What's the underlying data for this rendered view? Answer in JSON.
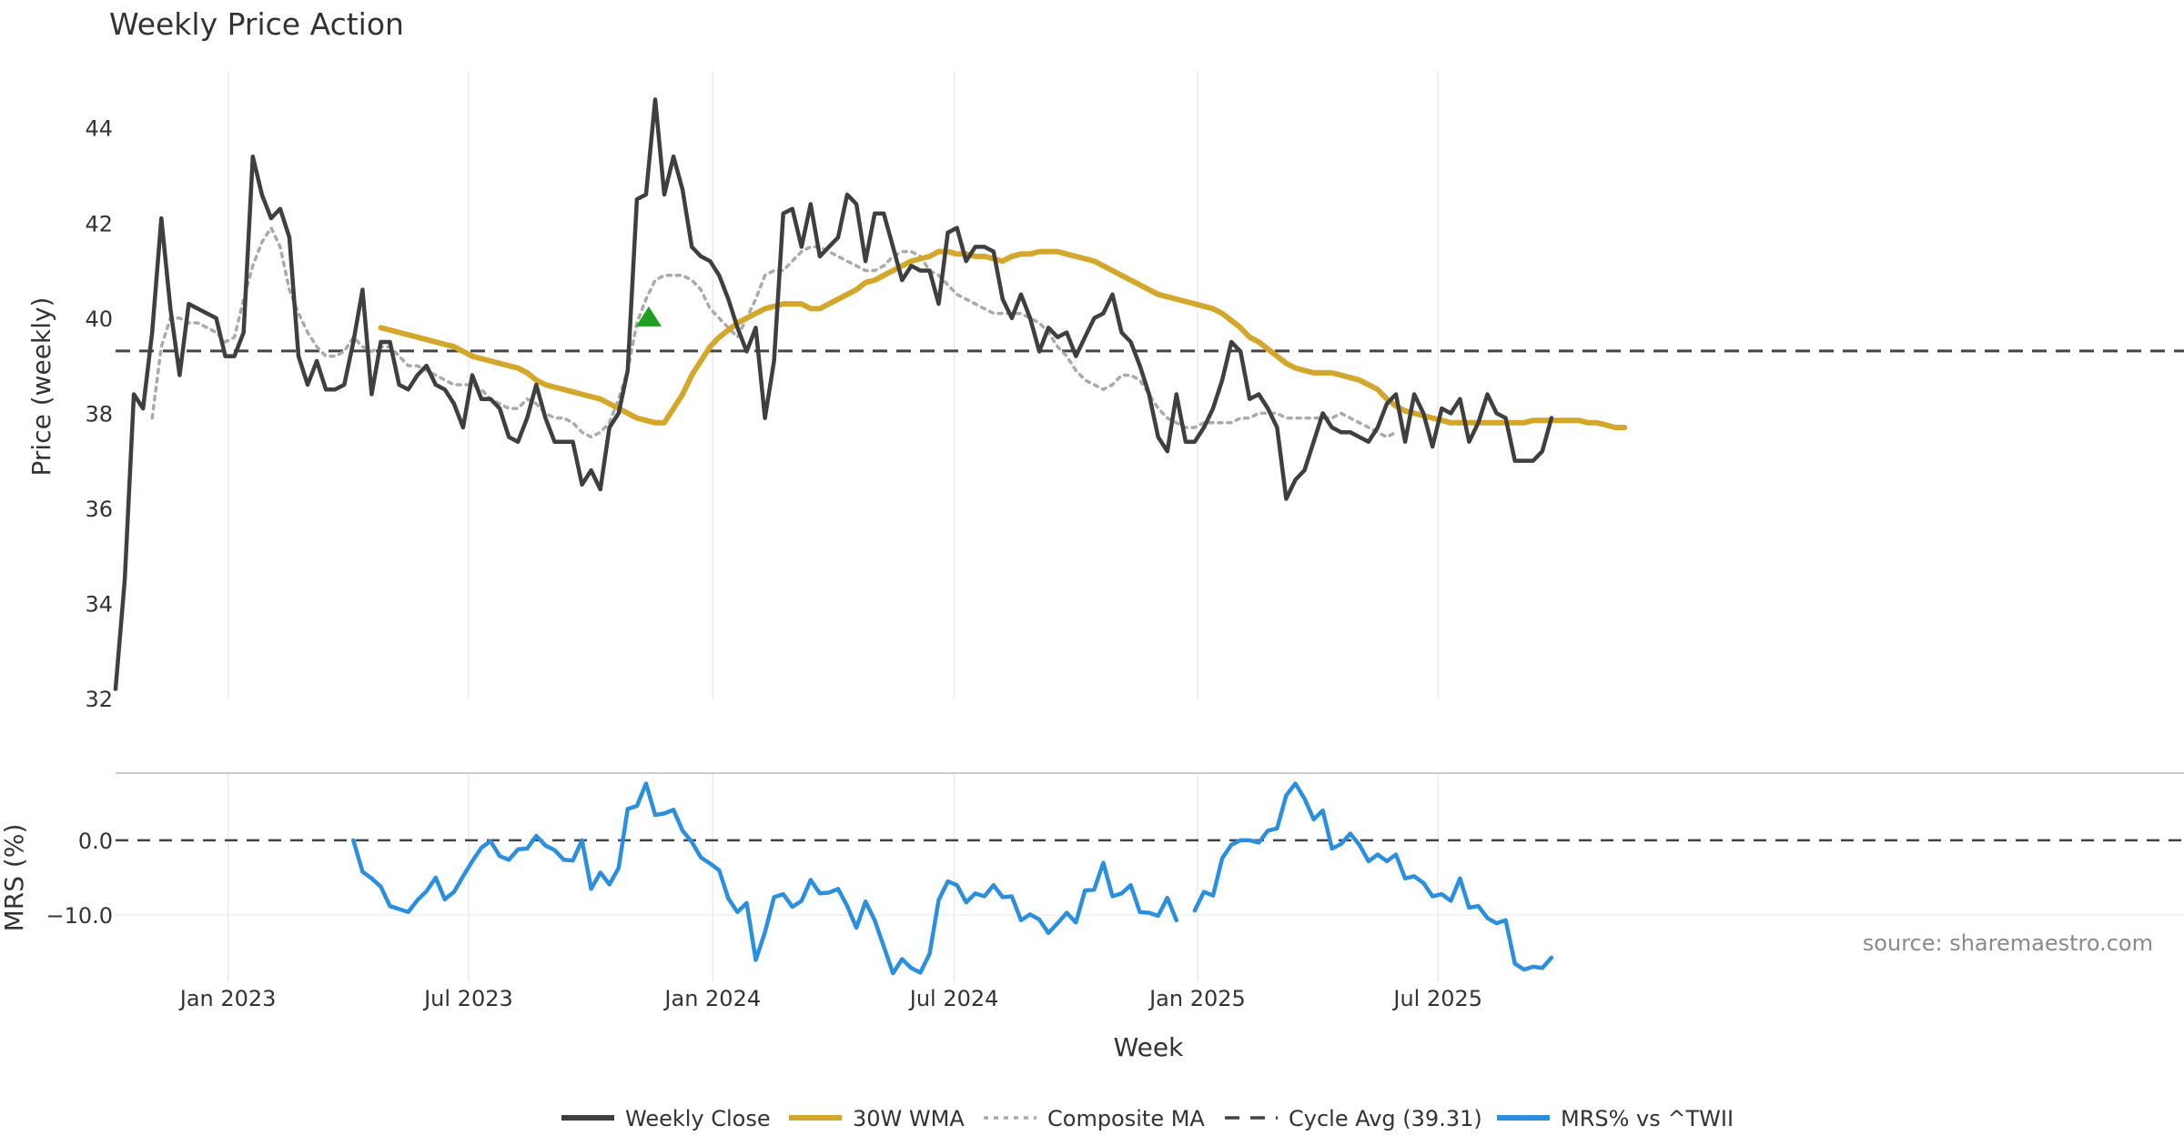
{
  "colors": {
    "close": "#3f3f3f",
    "wma": "#d4a62a",
    "composite": "#aaaaaa",
    "cycle": "#444444",
    "mrs": "#2b8fe0",
    "signal": "#1f9e1f",
    "grid": "#ebebeb"
  },
  "chart_data": [
    {
      "type": "line",
      "title": "Weekly Price Action",
      "xlabel": "Week",
      "ylabel": "Price (weekly)",
      "ylim": [
        32,
        45.2
      ],
      "yticks": [
        "32",
        "34",
        "36",
        "38",
        "40",
        "42",
        "44"
      ],
      "xticks": [
        "Jan 2023",
        "Jul 2023",
        "Jan 2024",
        "Jul 2024",
        "Jan 2025",
        "Jul 2025"
      ],
      "xtick_weeks": [
        12.3,
        38.6,
        65.3,
        91.7,
        118.3,
        144.6
      ],
      "cycle_avg": 39.31,
      "series": [
        {
          "name": "Weekly Close",
          "start_week": 0,
          "values": [
            32.2,
            34.5,
            38.4,
            38.1,
            39.7,
            42.1,
            40.2,
            38.8,
            40.3,
            40.2,
            40.1,
            40.0,
            39.2,
            39.2,
            39.7,
            43.4,
            42.6,
            42.1,
            42.3,
            41.7,
            39.2,
            38.6,
            39.1,
            38.5,
            38.5,
            38.6,
            39.5,
            40.6,
            38.4,
            39.5,
            39.5,
            38.6,
            38.5,
            38.8,
            39.0,
            38.6,
            38.5,
            38.2,
            37.7,
            38.8,
            38.3,
            38.3,
            38.1,
            37.5,
            37.4,
            37.9,
            38.6,
            37.9,
            37.4,
            37.4,
            37.4,
            36.5,
            36.8,
            36.4,
            37.7,
            38.0,
            38.9,
            42.5,
            42.6,
            44.6,
            42.6,
            43.4,
            42.7,
            41.5,
            41.3,
            41.2,
            40.9,
            40.4,
            39.8,
            39.3,
            39.8,
            37.9,
            39.1,
            42.2,
            42.3,
            41.5,
            42.4,
            41.3,
            41.5,
            41.7,
            42.6,
            42.4,
            41.2,
            42.2,
            42.2,
            41.5,
            40.8,
            41.1,
            41.0,
            41.0,
            40.3,
            41.8,
            41.9,
            41.2,
            41.5,
            41.5,
            41.4,
            40.4,
            40.0,
            40.5,
            40.0,
            39.3,
            39.8,
            39.6,
            39.7,
            39.2,
            39.6,
            40.0,
            40.1,
            40.5,
            39.7,
            39.5,
            39.0,
            38.4,
            37.5,
            37.2,
            38.4,
            37.4,
            37.4,
            37.7,
            38.1,
            38.7,
            39.5,
            39.3,
            38.3,
            38.4,
            38.1,
            37.7,
            36.2,
            36.6,
            36.8,
            37.4,
            38.0,
            37.7,
            37.6,
            37.6,
            37.5,
            37.4,
            37.7,
            38.2,
            38.4,
            37.4,
            38.4,
            38.0,
            37.3,
            38.1,
            38.0,
            38.3,
            37.4,
            37.8,
            38.4,
            38.0,
            37.9,
            37.0,
            37.0,
            37.0,
            37.2,
            37.9
          ]
        },
        {
          "name": "30W WMA",
          "start_week": 29,
          "values": [
            39.8,
            39.75,
            39.7,
            39.65,
            39.6,
            39.55,
            39.5,
            39.45,
            39.4,
            39.3,
            39.2,
            39.15,
            39.1,
            39.05,
            39.0,
            38.95,
            38.85,
            38.7,
            38.6,
            38.55,
            38.5,
            38.45,
            38.4,
            38.35,
            38.3,
            38.2,
            38.1,
            38.0,
            37.9,
            37.85,
            37.8,
            37.8,
            38.1,
            38.4,
            38.8,
            39.1,
            39.4,
            39.6,
            39.75,
            39.9,
            40.0,
            40.1,
            40.2,
            40.25,
            40.3,
            40.3,
            40.3,
            40.2,
            40.2,
            40.3,
            40.4,
            40.5,
            40.6,
            40.75,
            40.8,
            40.9,
            41.0,
            41.1,
            41.2,
            41.25,
            41.3,
            41.4,
            41.4,
            41.35,
            41.35,
            41.3,
            41.3,
            41.25,
            41.2,
            41.3,
            41.35,
            41.35,
            41.4,
            41.4,
            41.4,
            41.35,
            41.3,
            41.25,
            41.2,
            41.1,
            41.0,
            40.9,
            40.8,
            40.7,
            40.6,
            40.5,
            40.45,
            40.4,
            40.35,
            40.3,
            40.25,
            40.2,
            40.1,
            39.95,
            39.8,
            39.6,
            39.5,
            39.35,
            39.2,
            39.05,
            38.95,
            38.9,
            38.85,
            38.85,
            38.85,
            38.8,
            38.75,
            38.7,
            38.6,
            38.5,
            38.3,
            38.15,
            38.05,
            38.0,
            37.95,
            37.9,
            37.85,
            37.8,
            37.8,
            37.8,
            37.8,
            37.8,
            37.8,
            37.8,
            37.8,
            37.8,
            37.85,
            37.85,
            37.85,
            37.85,
            37.85,
            37.85,
            37.8,
            37.8,
            37.75,
            37.7,
            37.7
          ]
        },
        {
          "name": "Composite MA",
          "start_week": 4,
          "values": [
            37.9,
            39.4,
            40.0,
            40.0,
            39.9,
            39.9,
            39.8,
            39.7,
            39.5,
            39.6,
            40.4,
            41.1,
            41.6,
            41.9,
            41.5,
            40.6,
            40.1,
            39.7,
            39.4,
            39.2,
            39.2,
            39.3,
            39.6,
            39.4,
            39.3,
            39.4,
            39.4,
            39.2,
            39.0,
            39.0,
            38.9,
            38.8,
            38.7,
            38.6,
            38.6,
            38.6,
            38.5,
            38.3,
            38.2,
            38.1,
            38.1,
            38.3,
            38.2,
            38.0,
            37.9,
            37.9,
            37.8,
            37.6,
            37.5,
            37.6,
            37.8,
            38.3,
            38.9,
            39.9,
            40.4,
            40.8,
            40.9,
            40.9,
            40.9,
            40.8,
            40.6,
            40.2,
            40.0,
            39.8,
            39.6,
            40.0,
            40.4,
            40.9,
            41.0,
            41.0,
            41.2,
            41.4,
            41.5,
            41.5,
            41.4,
            41.3,
            41.2,
            41.1,
            41.0,
            41.0,
            41.1,
            41.3,
            41.4,
            41.4,
            41.3,
            41.0,
            40.9,
            40.7,
            40.5,
            40.4,
            40.3,
            40.2,
            40.1,
            40.1,
            40.1,
            40.1,
            40.0,
            39.9,
            39.7,
            39.4,
            39.2,
            38.9,
            38.7,
            38.6,
            38.5,
            38.6,
            38.8,
            38.8,
            38.7,
            38.4,
            38.1,
            37.9,
            37.8,
            37.7,
            37.7,
            37.8,
            37.8,
            37.8,
            37.8,
            37.9,
            37.9,
            38.0,
            38.0,
            38.0,
            37.9,
            37.9,
            37.9,
            37.9,
            37.9,
            37.9,
            38.0,
            37.9,
            37.8,
            37.7,
            37.6,
            37.5,
            37.6
          ]
        }
      ],
      "signal_marker": {
        "week": 58.3,
        "value": 40.0,
        "shape": "triangle-up"
      }
    },
    {
      "type": "line",
      "xlabel": "Week",
      "ylabel": "MRS (%)",
      "ylim": [
        -19,
        9
      ],
      "yticks": [
        "0.0",
        "−10.0"
      ],
      "ytick_values": [
        0,
        -10
      ],
      "xticks": [
        "Jan 2023",
        "Jul 2023",
        "Jan 2024",
        "Jul 2024",
        "Jan 2025",
        "Jul 2025"
      ],
      "series": [
        {
          "name": "MRS% vs ^TWII",
          "start_week": 26,
          "values": [
            0.0,
            -4.2,
            -5.1,
            -6.2,
            -8.8,
            -9.2,
            -9.6,
            -8.0,
            -6.8,
            -5.0,
            -7.9,
            -6.9,
            -4.8,
            -2.8,
            -1.0,
            -0.1,
            -2.1,
            -2.6,
            -1.2,
            -1.1,
            0.6,
            -0.7,
            -1.3,
            -2.6,
            -2.7,
            0.0,
            -6.5,
            -4.3,
            -5.9,
            -3.7,
            4.2,
            4.6,
            7.6,
            3.4,
            3.6,
            4.1,
            1.3,
            -0.2,
            -2.3,
            -3.1,
            -4.0,
            -7.8,
            -9.6,
            -8.4,
            -16.0,
            -12.3,
            -7.6,
            -7.2,
            -8.9,
            -8.1,
            -5.3,
            -7.1,
            -7.0,
            -6.5,
            -8.8,
            -11.7,
            -8.2,
            -10.7,
            -14.2,
            -17.8,
            -15.9,
            -17.1,
            -17.7,
            -15.2,
            -8.0,
            -5.5,
            -6.0,
            -8.3,
            -7.1,
            -7.5,
            -6.0,
            -7.6,
            -7.5,
            -10.7,
            -9.9,
            -10.6,
            -12.4,
            -11.1,
            -9.7,
            -11.0,
            -6.7,
            -6.6,
            -3.0,
            -7.5,
            -7.1,
            -6.0,
            -9.6,
            -9.7,
            -10.1,
            -7.7,
            -10.7,
            null,
            -9.4,
            -6.9,
            -7.4,
            -2.4,
            -0.6,
            0.0,
            0.0,
            -0.3,
            1.3,
            1.6,
            6.0,
            7.6,
            5.6,
            2.8,
            4.0,
            -1.1,
            -0.5,
            0.9,
            -0.6,
            -2.8,
            -1.9,
            -2.8,
            -1.9,
            -5.1,
            -4.8,
            -5.7,
            -7.5,
            -7.2,
            -8.1,
            -5.1,
            -9.0,
            -8.8,
            -10.4,
            -11.1,
            -10.7,
            -16.5,
            -17.3,
            -16.9,
            -17.1,
            -15.7
          ]
        }
      ],
      "source": "source: sharemaestro.com"
    }
  ],
  "legend": {
    "items": [
      {
        "label": "Weekly Close",
        "style": "solid",
        "color_key": "close"
      },
      {
        "label": "30W WMA",
        "style": "solid",
        "color_key": "wma"
      },
      {
        "label": "Composite MA",
        "style": "dotted",
        "color_key": "composite"
      },
      {
        "label": "Cycle Avg (39.31)",
        "style": "dashed",
        "color_key": "cycle"
      },
      {
        "label": "MRS% vs ^TWII",
        "style": "solid",
        "color_key": "mrs"
      }
    ]
  }
}
